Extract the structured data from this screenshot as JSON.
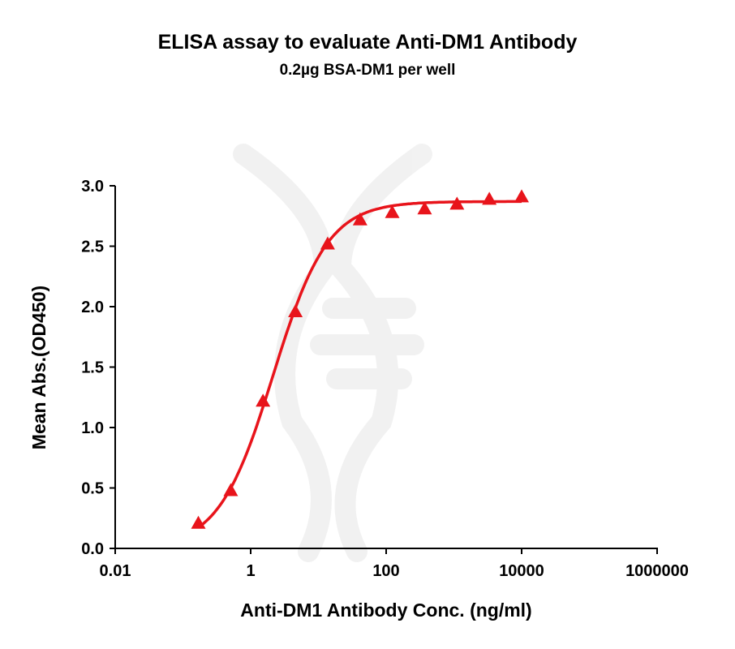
{
  "chart_data": {
    "type": "scatter",
    "title": "ELISA assay to evaluate Anti-DM1 Antibody",
    "subtitle": "0.2µg BSA-DM1 per well",
    "xlabel": "Anti-DM1 Antibody Conc. (ng/ml)",
    "ylabel": "Mean Abs.(OD450)",
    "x_scale": "log",
    "xlim": [
      0.01,
      1000000
    ],
    "ylim": [
      0,
      3.0
    ],
    "x_ticks": [
      "0.01",
      "1",
      "100",
      "10000",
      "1000000"
    ],
    "y_ticks": [
      "0.0",
      "0.5",
      "1.0",
      "1.5",
      "2.0",
      "2.5",
      "3.0"
    ],
    "grid": false,
    "legend": "none",
    "series": [
      {
        "marker": "triangle",
        "color": "#e8141b",
        "fit_line": "sigmoidal",
        "x": [
          0.169,
          0.508,
          1.52,
          4.57,
          13.7,
          41.2,
          123,
          370,
          1111,
          3333,
          10000
        ],
        "y": [
          0.21,
          0.48,
          1.22,
          1.96,
          2.52,
          2.72,
          2.78,
          2.81,
          2.85,
          2.89,
          2.91
        ]
      }
    ]
  }
}
